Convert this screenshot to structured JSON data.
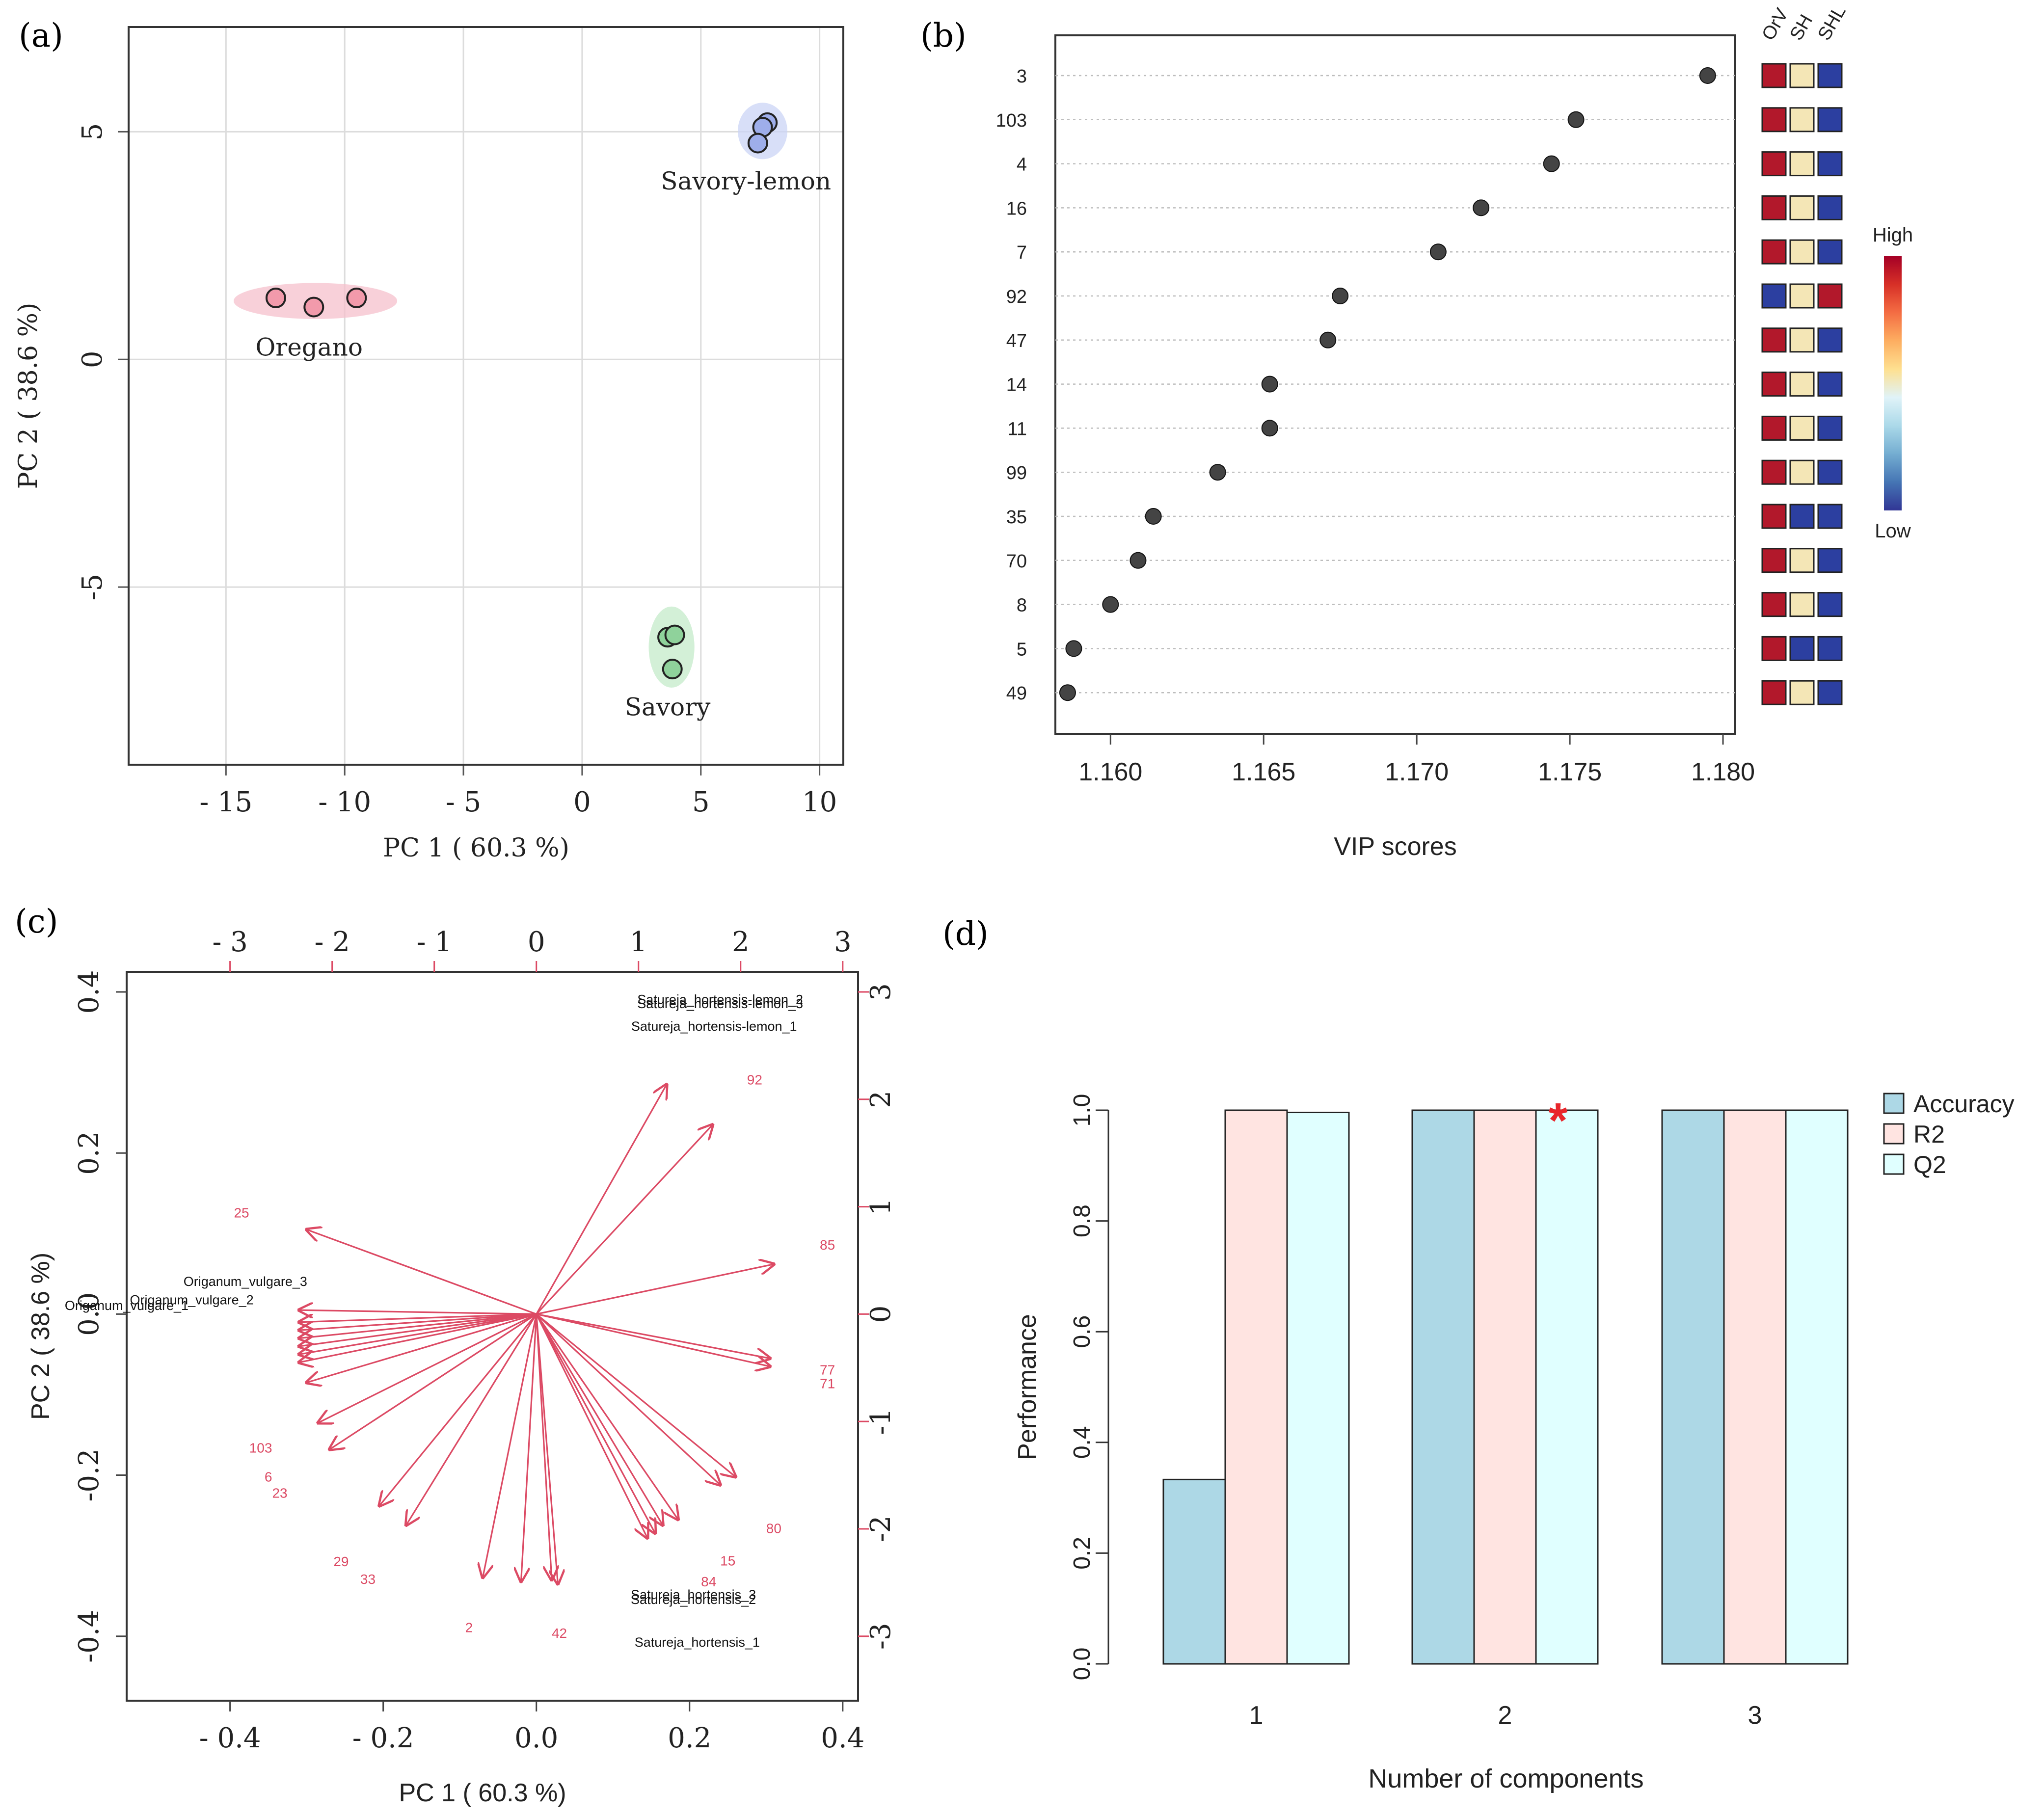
{
  "panel_labels": {
    "a": "(a)",
    "b": "(b)",
    "c": "(c)",
    "d": "(d)"
  },
  "chart_data": [
    {
      "panel": "a",
      "type": "scatter",
      "xlabel": "PC 1 ( 60.3 %)",
      "ylabel": "PC 2 ( 38.6 %)",
      "xlim": [
        -19.1,
        11
      ],
      "ylim": [
        -8.9,
        7.3
      ],
      "xticks": [
        -15,
        -10,
        -5,
        0,
        5,
        10
      ],
      "xtick_labels": [
        "- 15",
        "- 10",
        "- 5",
        "0",
        "5",
        "10"
      ],
      "yticks": [
        -5,
        0,
        5
      ],
      "ytick_labels": [
        "-5",
        "0",
        "5"
      ],
      "grid": true,
      "series": [
        {
          "name": "Oregano",
          "color": "#f29aab",
          "ellipse_color": "#f6c0cc",
          "points": [
            [
              -12.9,
              1.35
            ],
            [
              -11.3,
              1.15
            ],
            [
              -9.5,
              1.35
            ]
          ],
          "label_at": [
            -11.5,
            0.3
          ]
        },
        {
          "name": "Savory-lemon",
          "color": "#9eaeea",
          "ellipse_color": "#cbd4f5",
          "points": [
            [
              7.8,
              5.2
            ],
            [
              7.6,
              5.1
            ],
            [
              7.4,
              4.75
            ]
          ],
          "label_at": [
            6.9,
            3.95
          ]
        },
        {
          "name": "Savory",
          "color": "#8fd29b",
          "ellipse_color": "#c4ebc9",
          "points": [
            [
              3.6,
              -6.1
            ],
            [
              3.9,
              -6.05
            ],
            [
              3.8,
              -6.8
            ]
          ],
          "label_at": [
            3.6,
            -7.6
          ]
        }
      ]
    },
    {
      "panel": "b",
      "type": "scatter",
      "subtype": "dot-plot",
      "xlabel": "VIP scores",
      "xlim": [
        1.1582,
        1.1804
      ],
      "xticks": [
        1.16,
        1.165,
        1.17,
        1.175,
        1.18
      ],
      "xtick_labels": [
        "1.160",
        "1.165",
        "1.170",
        "1.175",
        "1.180"
      ],
      "features": [
        "3",
        "103",
        "4",
        "16",
        "7",
        "92",
        "47",
        "14",
        "11",
        "99",
        "35",
        "70",
        "8",
        "5",
        "49"
      ],
      "values": [
        1.1795,
        1.1752,
        1.1744,
        1.1721,
        1.1707,
        1.1675,
        1.1671,
        1.1652,
        1.1652,
        1.1635,
        1.1614,
        1.1609,
        1.16,
        1.1588,
        1.1586
      ],
      "heatmap_columns": [
        "OrV",
        "SH",
        "SHL"
      ],
      "heatmap_levels": [
        [
          "high",
          "mid",
          "low"
        ],
        [
          "high",
          "mid",
          "low"
        ],
        [
          "high",
          "mid",
          "low"
        ],
        [
          "high",
          "mid",
          "low"
        ],
        [
          "high",
          "mid",
          "low"
        ],
        [
          "low",
          "mid",
          "high"
        ],
        [
          "high",
          "mid",
          "low"
        ],
        [
          "high",
          "mid",
          "low"
        ],
        [
          "high",
          "mid",
          "low"
        ],
        [
          "high",
          "mid",
          "low"
        ],
        [
          "high",
          "low",
          "low"
        ],
        [
          "high",
          "mid",
          "low"
        ],
        [
          "high",
          "mid",
          "low"
        ],
        [
          "high",
          "low",
          "low"
        ],
        [
          "high",
          "mid",
          "low"
        ]
      ],
      "heatmap_colors": {
        "high": "#b2182b",
        "mid": "#f4e6b6",
        "low": "#2c3fa0"
      },
      "legend": {
        "high_label": "High",
        "low_label": "Low",
        "gradient": [
          "#a50026",
          "#d73027",
          "#f46d43",
          "#fdae61",
          "#fee090",
          "#e0f3f8",
          "#abd9e9",
          "#74add1",
          "#4575b4",
          "#313695"
        ]
      }
    },
    {
      "panel": "c",
      "type": "scatter",
      "subtype": "biplot",
      "xlabel": "PC 1 ( 60.3 %)",
      "ylabel": "PC 2 ( 38.6 %)",
      "xlim": [
        -0.535,
        0.42
      ],
      "ylim": [
        -0.48,
        0.425
      ],
      "xticks": [
        -0.4,
        -0.2,
        0.0,
        0.2,
        0.4
      ],
      "xtick_labels": [
        "- 0.4",
        "- 0.2",
        "0.0",
        "0.2",
        "0.4"
      ],
      "yticks": [
        -0.4,
        -0.2,
        0.0,
        0.2,
        0.4
      ],
      "ytick_labels": [
        "-0.4",
        "-0.2",
        "0.0",
        "0.2",
        "0.4"
      ],
      "top_axis_ticks": [
        -3,
        -2,
        -1,
        0,
        1,
        2,
        3
      ],
      "top_axis_labels": [
        "- 3",
        "- 2",
        "- 1",
        "0",
        "1",
        "2",
        "3"
      ],
      "right_axis_ticks": [
        3,
        2,
        1,
        0,
        -1,
        -2,
        -3
      ],
      "right_axis_labels": [
        "3",
        "2",
        "1",
        "0",
        "-1",
        "-2",
        "-3"
      ],
      "secondary_range": [
        -3.6,
        3.1
      ],
      "arrow_color": "#dc4a64",
      "samples": [
        {
          "name": "Satureja_hortensis-lemon_2",
          "x": 0.24,
          "y": 0.385
        },
        {
          "name": "Satureja_hortensis-lemon_3",
          "x": 0.24,
          "y": 0.38
        },
        {
          "name": "Satureja_hortensis-lemon_1",
          "x": 0.232,
          "y": 0.352
        },
        {
          "name": "Origanum_vulgare_3",
          "x": -0.38,
          "y": 0.035
        },
        {
          "name": "Origanum_vulgare_2",
          "x": -0.45,
          "y": 0.012
        },
        {
          "name": "Origanum_vulgare_1",
          "x": -0.535,
          "y": 0.005
        },
        {
          "name": "Satureja_hortensis_3",
          "x": 0.205,
          "y": -0.354
        },
        {
          "name": "Satureja_hortensis_2",
          "x": 0.205,
          "y": -0.36
        },
        {
          "name": "Satureja_hortensis_1",
          "x": 0.21,
          "y": -0.413
        }
      ],
      "variables": [
        {
          "label": "92",
          "x": 0.285,
          "y": 0.285
        },
        {
          "label": "25",
          "x": -0.385,
          "y": 0.12
        },
        {
          "label": "85",
          "x": 0.38,
          "y": 0.08
        },
        {
          "label": "77",
          "x": 0.38,
          "y": -0.075
        },
        {
          "label": "71",
          "x": 0.38,
          "y": -0.092
        },
        {
          "label": "103",
          "x": -0.36,
          "y": -0.172
        },
        {
          "label": "6",
          "x": -0.35,
          "y": -0.208
        },
        {
          "label": "23",
          "x": -0.335,
          "y": -0.228
        },
        {
          "label": "80",
          "x": 0.31,
          "y": -0.272
        },
        {
          "label": "15",
          "x": 0.25,
          "y": -0.312
        },
        {
          "label": "84",
          "x": 0.225,
          "y": -0.338
        },
        {
          "label": "29",
          "x": -0.255,
          "y": -0.313
        },
        {
          "label": "33",
          "x": -0.22,
          "y": -0.335
        },
        {
          "label": "2",
          "x": -0.088,
          "y": -0.395
        },
        {
          "label": "42",
          "x": 0.03,
          "y": -0.402
        }
      ],
      "arrows": [
        [
          0.17,
          0.285
        ],
        [
          0.23,
          0.235
        ],
        [
          0.31,
          0.062
        ],
        [
          0.305,
          -0.055
        ],
        [
          0.305,
          -0.065
        ],
        [
          -0.3,
          0.105
        ],
        [
          -0.31,
          0.005
        ],
        [
          -0.31,
          -0.01
        ],
        [
          -0.31,
          -0.02
        ],
        [
          -0.31,
          -0.03
        ],
        [
          -0.31,
          -0.04
        ],
        [
          -0.31,
          -0.05
        ],
        [
          -0.31,
          -0.06
        ],
        [
          -0.3,
          -0.085
        ],
        [
          -0.285,
          -0.135
        ],
        [
          -0.27,
          -0.168
        ],
        [
          -0.205,
          -0.238
        ],
        [
          -0.17,
          -0.262
        ],
        [
          -0.07,
          -0.327
        ],
        [
          -0.02,
          -0.332
        ],
        [
          0.02,
          -0.33
        ],
        [
          0.028,
          -0.335
        ],
        [
          0.145,
          -0.278
        ],
        [
          0.155,
          -0.272
        ],
        [
          0.165,
          -0.262
        ],
        [
          0.185,
          -0.255
        ],
        [
          0.24,
          -0.212
        ],
        [
          0.26,
          -0.202
        ]
      ]
    },
    {
      "panel": "d",
      "type": "bar",
      "xlabel": "Number of components",
      "ylabel": "Performance",
      "categories": [
        "1",
        "2",
        "3"
      ],
      "ylim": [
        0,
        1.0
      ],
      "yticks": [
        0.0,
        0.2,
        0.4,
        0.6,
        0.8,
        1.0
      ],
      "ytick_labels": [
        "0.0",
        "0.2",
        "0.4",
        "0.6",
        "0.8",
        "1.0"
      ],
      "series": [
        {
          "name": "Accuracy",
          "color": "#add8e6",
          "values": [
            0.333,
            1.0,
            1.0
          ]
        },
        {
          "name": "R2",
          "color": "#ffe4e1",
          "values": [
            1.0,
            1.0,
            1.0
          ]
        },
        {
          "name": "Q2",
          "color": "#e0ffff",
          "values": [
            0.996,
            1.0,
            1.0
          ]
        }
      ],
      "annotation": {
        "text": "*",
        "color": "#e8262b",
        "category": "2",
        "series": "Q2"
      }
    }
  ]
}
